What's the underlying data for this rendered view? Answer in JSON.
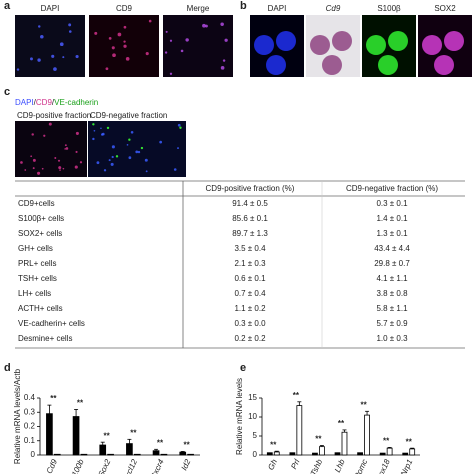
{
  "panel_a": {
    "label": "a",
    "images": [
      "DAPI",
      "CD9",
      "Merge"
    ]
  },
  "panel_b": {
    "label": "b",
    "images": [
      "DAPI",
      "Cd9",
      "S100β",
      "SOX2"
    ]
  },
  "panel_c": {
    "label": "c",
    "legend": [
      "DAPI",
      "/",
      "CD9",
      "/",
      "VE-cadherin"
    ],
    "images": [
      "CD9-positive fraction",
      "CD9-negative fraction"
    ],
    "table": {
      "header": [
        "CD9-positive fraction (%)",
        "CD9-negative fraction (%)"
      ],
      "rows": [
        [
          "CD9+cells",
          "91.4 ± 0.5",
          "0.3 ± 0.1"
        ],
        [
          "S100β+ cells",
          "85.6 ± 0.1",
          "1.4 ± 0.1"
        ],
        [
          "SOX2+ cells",
          "89.7 ± 1.3",
          "1.3 ± 0.1"
        ],
        [
          "GH+ cells",
          "3.5 ± 0.4",
          "43.4 ± 4.4"
        ],
        [
          "PRL+ cells",
          "2.1 ± 0.3",
          "29.8 ± 0.7"
        ],
        [
          "TSH+ cells",
          "0.6 ± 0.1",
          "4.1 ± 1.1"
        ],
        [
          "LH+ cells",
          "0.7 ± 0.4",
          "3.8 ± 0.8"
        ],
        [
          "ACTH+ cells",
          "1.1 ± 0.2",
          "5.8 ± 1.1"
        ],
        [
          "VE-cadherin+ cells",
          "0.3 ± 0.0",
          "5.7 ± 0.9"
        ],
        [
          "Desmine+ cells",
          "0.2 ± 0.2",
          "1.0 ± 0.3"
        ]
      ]
    }
  },
  "chart_data": [
    {
      "type": "bar",
      "label": "d",
      "ylabel": "Relative mRNA levels/Actb",
      "categories": [
        "Cd9",
        "S100b",
        "Sox2",
        "Cxcl12",
        "Cxcr4",
        "Id2"
      ],
      "series": [
        {
          "color": "#000000",
          "values": [
            0.29,
            0.27,
            0.07,
            0.08,
            0.03,
            0.02
          ],
          "errors": [
            0.06,
            0.05,
            0.02,
            0.03,
            0.01,
            0.005
          ]
        },
        {
          "color": "#ffffff",
          "values": [
            0.005,
            0.005,
            0.005,
            0.005,
            0.005,
            0.005
          ]
        }
      ],
      "annotations": [
        "**",
        "**",
        "**",
        "**",
        "**",
        "**"
      ],
      "ylim": [
        0,
        0.4
      ],
      "yticks": [
        0,
        0.1,
        0.2,
        0.3,
        0.4
      ]
    },
    {
      "type": "bar",
      "label": "e",
      "ylabel": "Relative mRNA levels",
      "categories": [
        "Gh",
        "Prl",
        "Tshb",
        "Lhb",
        "Pomc",
        "Sox18",
        "Nrp1"
      ],
      "series": [
        {
          "color": "#000000",
          "values": [
            0.6,
            0.6,
            0.5,
            0.6,
            0.6,
            0.5,
            0.5
          ]
        },
        {
          "color": "#ffffff",
          "values": [
            0.8,
            13,
            2.2,
            6,
            10.5,
            1.8,
            1.6
          ],
          "errors": [
            0.2,
            1,
            0.3,
            0.6,
            1,
            0.2,
            0.2
          ]
        }
      ],
      "annotations": [
        "**",
        "**",
        "**",
        "**",
        "**",
        "**",
        "**"
      ],
      "ylim": [
        0,
        15
      ],
      "yticks": [
        0,
        5,
        10,
        15
      ]
    }
  ]
}
